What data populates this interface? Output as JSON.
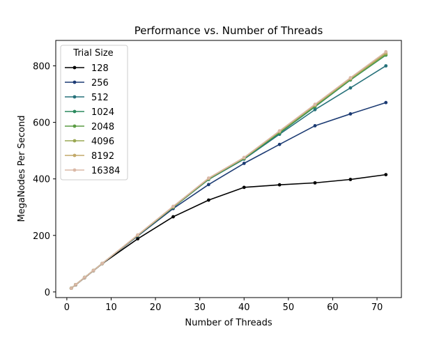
{
  "chart_data": {
    "type": "line",
    "title": "Performance vs. Number of Threads",
    "xlabel": "Number of Threads",
    "ylabel": "MegaNodes Per Second",
    "xlim": [
      -2.5,
      75.5
    ],
    "ylim": [
      -20,
      890
    ],
    "xticks": [
      0,
      10,
      20,
      30,
      40,
      50,
      60,
      70
    ],
    "yticks": [
      0,
      200,
      400,
      600,
      800
    ],
    "grid": false,
    "legend": {
      "title": "Trial Size",
      "placement": "top-left"
    },
    "x": [
      1,
      2,
      4,
      6,
      8,
      16,
      24,
      32,
      40,
      48,
      56,
      64,
      72
    ],
    "series": [
      {
        "name": "128",
        "color": "#000000",
        "values": [
          13,
          25,
          50,
          75,
          100,
          188,
          266,
          325,
          370,
          379,
          386,
          398,
          415
        ]
      },
      {
        "name": "256",
        "color": "#1c3b73",
        "values": [
          13,
          26,
          51,
          76,
          101,
          198,
          295,
          380,
          455,
          522,
          588,
          630,
          670
        ]
      },
      {
        "name": "512",
        "color": "#26717a",
        "values": [
          13,
          26,
          51,
          76,
          101,
          200,
          299,
          398,
          470,
          558,
          645,
          722,
          800
        ]
      },
      {
        "name": "1024",
        "color": "#2b8a5e",
        "values": [
          13,
          26,
          51,
          76,
          101,
          200,
          300,
          399,
          472,
          562,
          655,
          750,
          838
        ]
      },
      {
        "name": "2048",
        "color": "#5a9c43",
        "values": [
          13,
          26,
          51,
          76,
          101,
          200,
          300,
          400,
          473,
          565,
          658,
          752,
          840
        ]
      },
      {
        "name": "4096",
        "color": "#9aa853",
        "values": [
          13,
          26,
          51,
          76,
          101,
          201,
          301,
          401,
          474,
          567,
          660,
          754,
          843
        ]
      },
      {
        "name": "8192",
        "color": "#c2a96a",
        "values": [
          13,
          26,
          51,
          76,
          101,
          201,
          302,
          402,
          475,
          569,
          662,
          756,
          847
        ]
      },
      {
        "name": "16384",
        "color": "#dab8a6",
        "values": [
          13,
          26,
          51,
          76,
          101,
          202,
          303,
          403,
          476,
          570,
          664,
          758,
          850
        ]
      }
    ]
  }
}
